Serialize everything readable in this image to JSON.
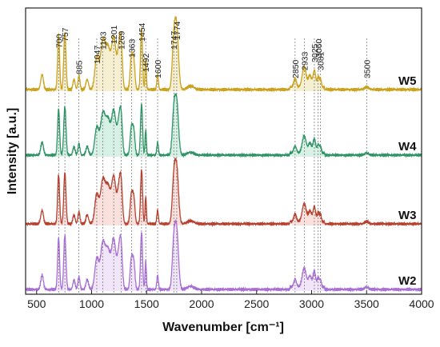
{
  "chart_data": {
    "type": "line",
    "xlabel": "Wavenumber [cm⁻¹]",
    "ylabel": "Intensity [a.u.]",
    "xlim": [
      400,
      4000
    ],
    "xticks": [
      500,
      1000,
      1500,
      2000,
      2500,
      3000,
      3500,
      4000
    ],
    "y_ticks_shown": false,
    "grid": false,
    "legend": "labels at right end of each trace",
    "peak_lines": [
      700,
      757,
      885,
      1047,
      1103,
      1201,
      1269,
      1363,
      1454,
      1492,
      1600,
      1747,
      1774,
      2850,
      2933,
      3025,
      3060,
      3081,
      3500
    ],
    "peak_labels": [
      {
        "text": "700",
        "x": 700
      },
      {
        "text": "757",
        "x": 757
      },
      {
        "text": "885",
        "x": 885
      },
      {
        "text": "1047",
        "x": 1047
      },
      {
        "text": "1103",
        "x": 1103
      },
      {
        "text": "1201",
        "x": 1201
      },
      {
        "text": "1269",
        "x": 1269
      },
      {
        "text": "1363",
        "x": 1363
      },
      {
        "text": "1454",
        "x": 1454
      },
      {
        "text": "1492",
        "x": 1492
      },
      {
        "text": "1600",
        "x": 1600
      },
      {
        "text": "1747",
        "x": 1747
      },
      {
        "text": "1774",
        "x": 1774
      },
      {
        "text": "2850",
        "x": 2850
      },
      {
        "text": "2933",
        "x": 2933
      },
      {
        "text": "3025",
        "x": 3025
      },
      {
        "text": "3060",
        "x": 3060
      },
      {
        "text": "3081",
        "x": 3081
      },
      {
        "text": "3500",
        "x": 3500
      }
    ],
    "series": [
      {
        "name": "W5",
        "color": "#c9a320",
        "offset": 3.0,
        "scale": 1.0,
        "band": "#e8d27a"
      },
      {
        "name": "W4",
        "color": "#2e9466",
        "offset": 2.0,
        "scale": 0.85,
        "band": "#8fd6b6"
      },
      {
        "name": "W3",
        "color": "#b5412e",
        "offset": 1.0,
        "scale": 0.9,
        "band": "#f1a8a0"
      },
      {
        "name": "W2",
        "color": "#a770d2",
        "offset": 0.0,
        "scale": 0.95,
        "band": "#d6b6ee"
      }
    ],
    "peaks": [
      {
        "x": 550,
        "h": 0.18,
        "w": 12
      },
      {
        "x": 700,
        "h": 0.65,
        "w": 9
      },
      {
        "x": 757,
        "h": 0.68,
        "w": 10
      },
      {
        "x": 840,
        "h": 0.12,
        "w": 10
      },
      {
        "x": 885,
        "h": 0.16,
        "w": 9
      },
      {
        "x": 960,
        "h": 0.12,
        "w": 12
      },
      {
        "x": 1047,
        "h": 0.38,
        "w": 18
      },
      {
        "x": 1103,
        "h": 0.58,
        "w": 22
      },
      {
        "x": 1150,
        "h": 0.45,
        "w": 20
      },
      {
        "x": 1201,
        "h": 0.62,
        "w": 20
      },
      {
        "x": 1250,
        "h": 0.45,
        "w": 16
      },
      {
        "x": 1269,
        "h": 0.4,
        "w": 12
      },
      {
        "x": 1363,
        "h": 0.4,
        "w": 12
      },
      {
        "x": 1385,
        "h": 0.3,
        "w": 10
      },
      {
        "x": 1454,
        "h": 0.72,
        "w": 9
      },
      {
        "x": 1492,
        "h": 0.36,
        "w": 6
      },
      {
        "x": 1600,
        "h": 0.18,
        "w": 7
      },
      {
        "x": 1747,
        "h": 0.55,
        "w": 14
      },
      {
        "x": 1774,
        "h": 0.72,
        "w": 16
      },
      {
        "x": 1900,
        "h": 0.04,
        "w": 30
      },
      {
        "x": 2850,
        "h": 0.1,
        "w": 12
      },
      {
        "x": 2933,
        "h": 0.24,
        "w": 18
      },
      {
        "x": 2985,
        "h": 0.14,
        "w": 14
      },
      {
        "x": 3025,
        "h": 0.2,
        "w": 12
      },
      {
        "x": 3060,
        "h": 0.12,
        "w": 9
      },
      {
        "x": 3081,
        "h": 0.09,
        "w": 8
      },
      {
        "x": 3500,
        "h": 0.03,
        "w": 18
      }
    ]
  }
}
